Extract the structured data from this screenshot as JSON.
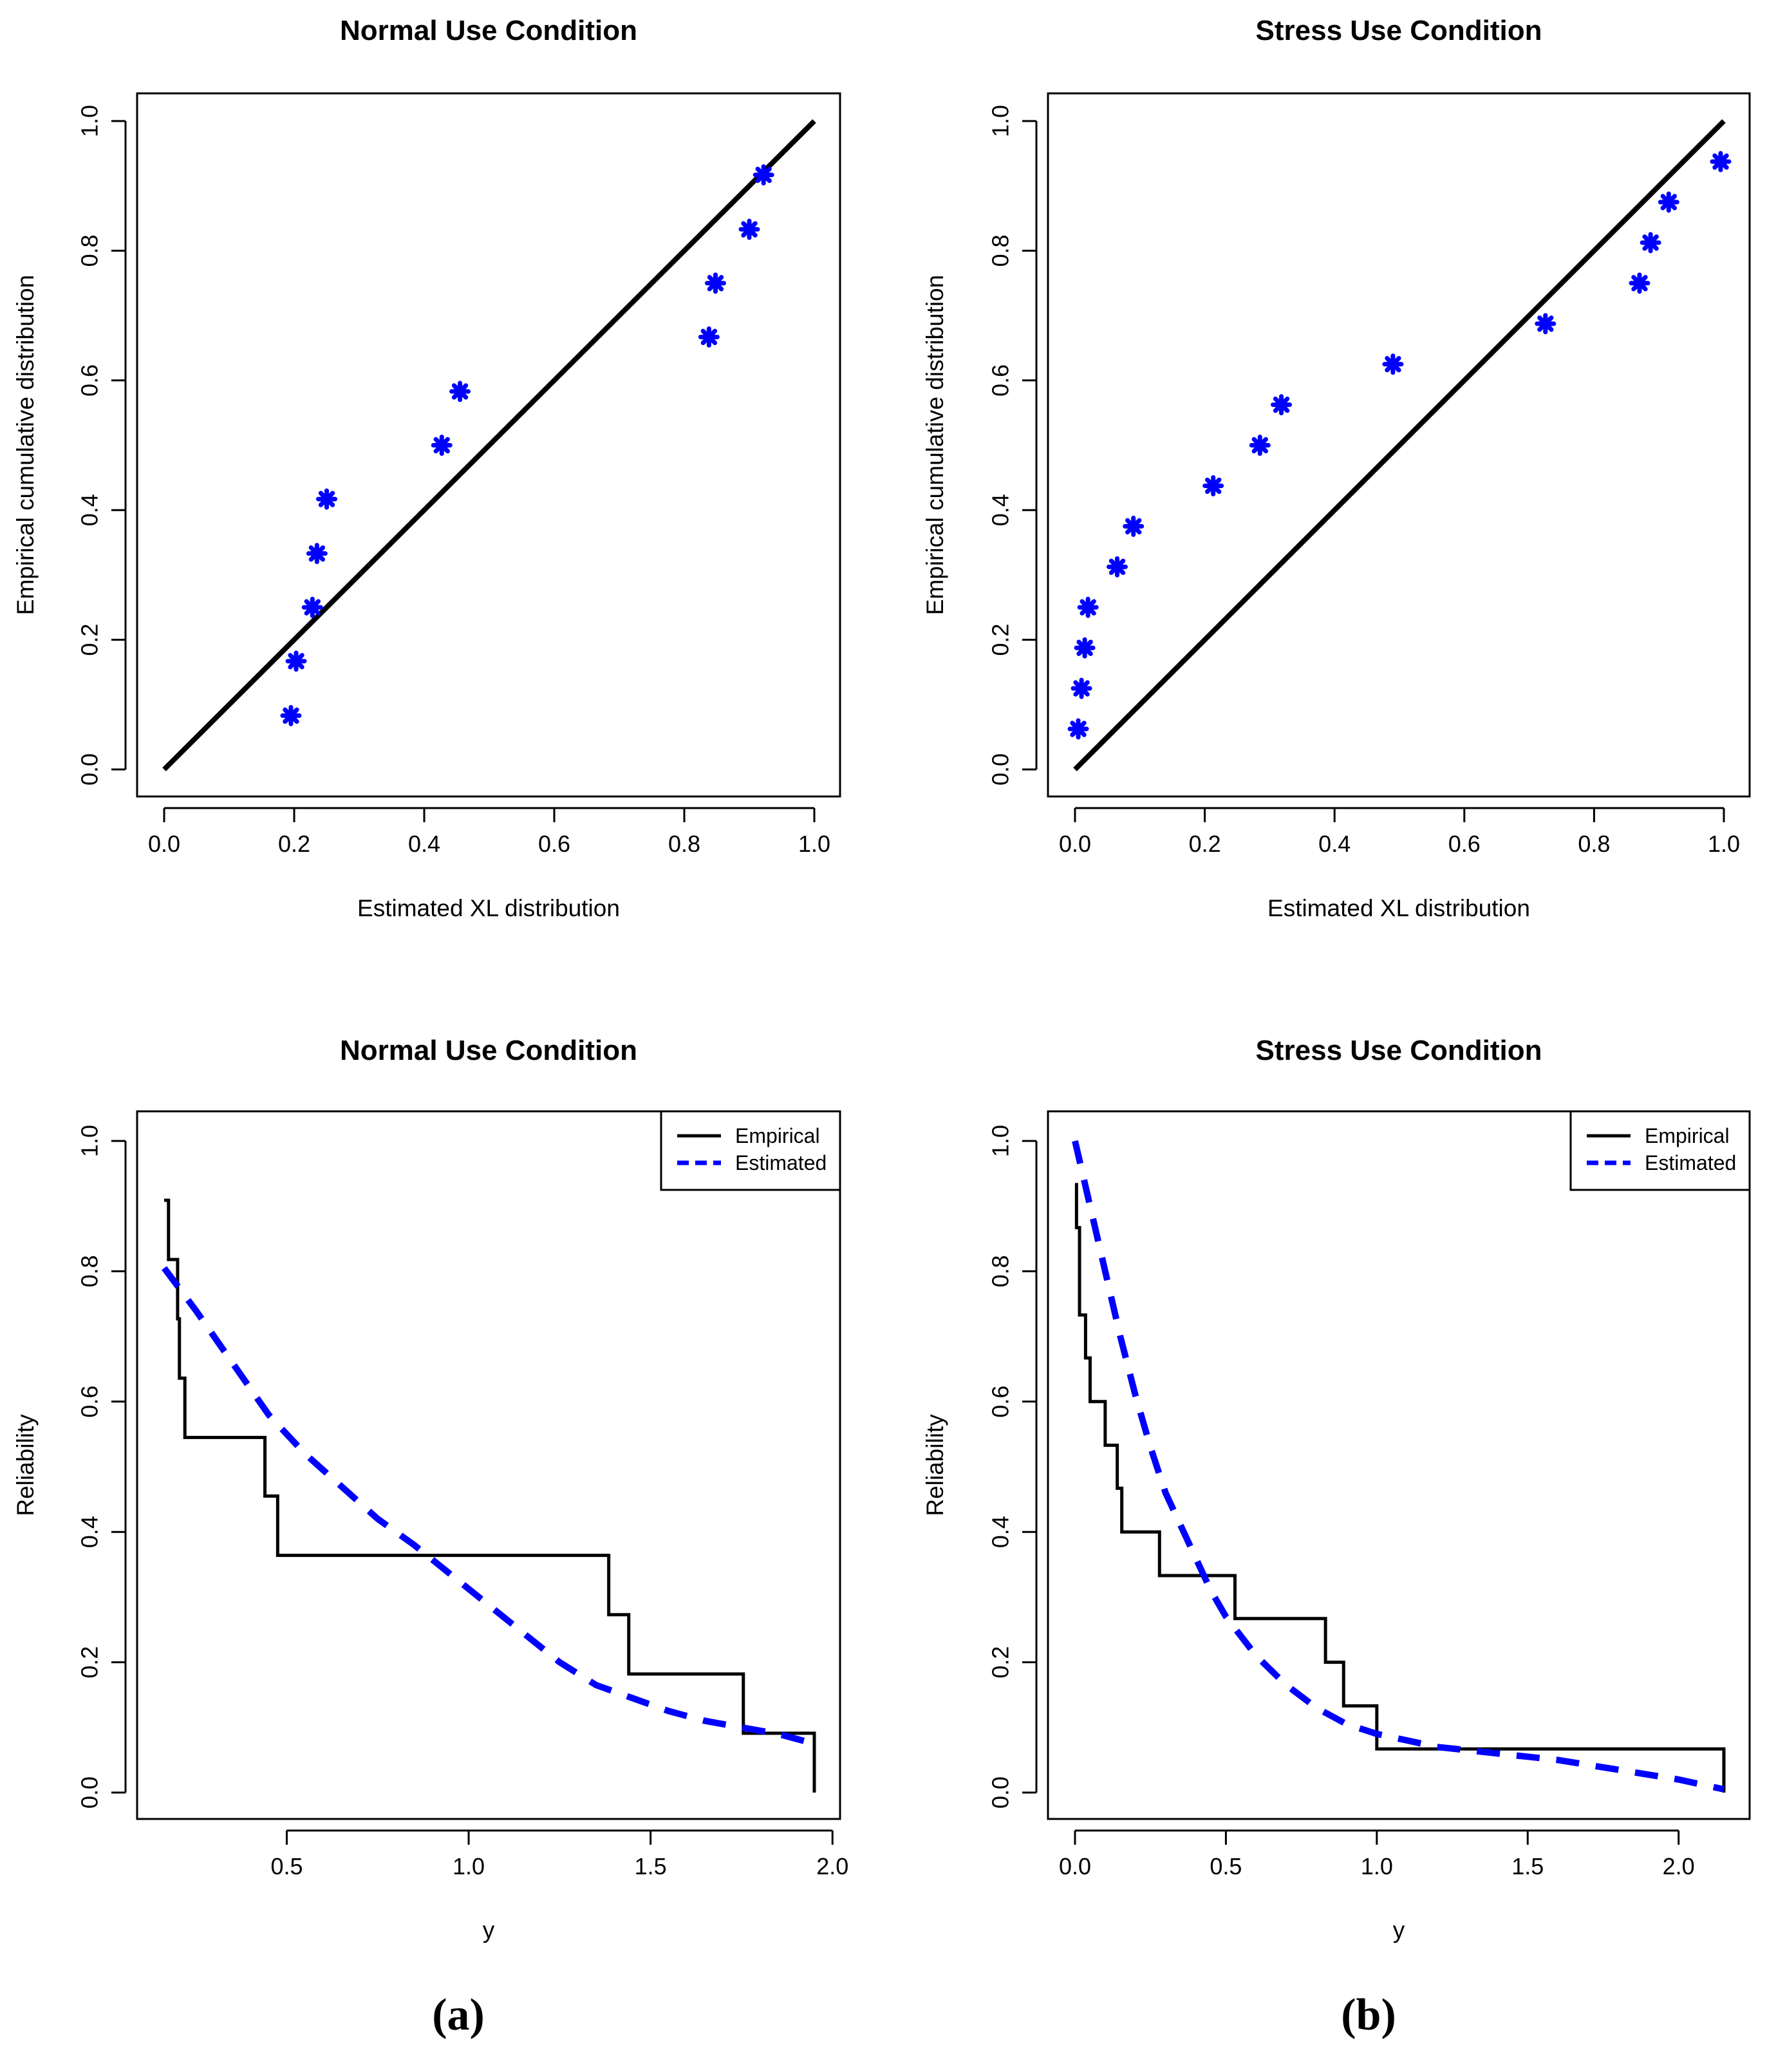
{
  "colors": {
    "empirical": "#000000",
    "estimated": "#0000ff",
    "points": "#0000ff",
    "axes": "#000000"
  },
  "panel_labels": {
    "a": "(a)",
    "b": "(b)"
  },
  "chart_data": [
    {
      "id": "pp-normal",
      "type": "scatter",
      "title": "Normal Use Condition",
      "xlabel": "Estimated XL distribution",
      "ylabel": "Empirical cumulative distribution",
      "xlim": [
        0,
        1
      ],
      "ylim": [
        0,
        1
      ],
      "xticks": [
        "0.0",
        "0.2",
        "0.4",
        "0.6",
        "0.8",
        "1.0"
      ],
      "yticks": [
        "0.0",
        "0.2",
        "0.4",
        "0.6",
        "0.8",
        "1.0"
      ],
      "reference_line": {
        "x": [
          0,
          1
        ],
        "y": [
          0,
          1
        ]
      },
      "points": {
        "x": [
          0.195,
          0.203,
          0.228,
          0.235,
          0.25,
          0.427,
          0.455,
          0.838,
          0.848,
          0.9,
          0.922
        ],
        "y": [
          0.083,
          0.167,
          0.25,
          0.333,
          0.417,
          0.5,
          0.583,
          0.667,
          0.75,
          0.833,
          0.917
        ]
      }
    },
    {
      "id": "pp-stress",
      "type": "scatter",
      "title": "Stress Use Condition",
      "xlabel": "Estimated XL distribution",
      "ylabel": "Empirical cumulative distribution",
      "xlim": [
        0,
        1
      ],
      "ylim": [
        0,
        1
      ],
      "xticks": [
        "0.0",
        "0.2",
        "0.4",
        "0.6",
        "0.8",
        "1.0"
      ],
      "yticks": [
        "0.0",
        "0.2",
        "0.4",
        "0.6",
        "0.8",
        "1.0"
      ],
      "reference_line": {
        "x": [
          0,
          1
        ],
        "y": [
          0,
          1
        ]
      },
      "points": {
        "x": [
          0.005,
          0.01,
          0.015,
          0.02,
          0.065,
          0.09,
          0.213,
          0.285,
          0.318,
          0.49,
          0.725,
          0.87,
          0.887,
          0.915,
          0.995
        ],
        "y": [
          0.0625,
          0.125,
          0.1875,
          0.25,
          0.3125,
          0.375,
          0.4375,
          0.5,
          0.5625,
          0.625,
          0.6875,
          0.75,
          0.8125,
          0.875,
          0.9375
        ]
      }
    },
    {
      "id": "rel-normal",
      "type": "line",
      "title": "Normal Use Condition",
      "xlabel": "y",
      "ylabel": "Reliability",
      "xlim": [
        0.163,
        1.95
      ],
      "ylim": [
        0,
        1
      ],
      "xticks": [
        "0.5",
        "1.0",
        "1.5",
        "2.0"
      ],
      "yticks": [
        "0.0",
        "0.2",
        "0.4",
        "0.6",
        "0.8",
        "1.0"
      ],
      "legend": [
        "Empirical",
        "Estimated"
      ],
      "legend_position": "top-right",
      "series": [
        {
          "name": "Empirical",
          "style": "step",
          "x": [
            0.163,
            0.175,
            0.2,
            0.205,
            0.22,
            0.44,
            0.475,
            1.385,
            1.44,
            1.755,
            1.95,
            1.95
          ],
          "y": [
            0.909,
            0.818,
            0.727,
            0.636,
            0.545,
            0.455,
            0.364,
            0.273,
            0.182,
            0.091,
            0.091,
            0.0
          ]
        },
        {
          "name": "Estimated",
          "style": "dashed",
          "x": [
            0.163,
            0.25,
            0.35,
            0.45,
            0.55,
            0.65,
            0.75,
            0.85,
            0.95,
            1.05,
            1.15,
            1.25,
            1.35,
            1.45,
            1.55,
            1.65,
            1.75,
            1.85,
            1.95
          ],
          "y": [
            0.805,
            0.74,
            0.66,
            0.58,
            0.52,
            0.47,
            0.42,
            0.38,
            0.335,
            0.29,
            0.245,
            0.2,
            0.165,
            0.145,
            0.125,
            0.11,
            0.1,
            0.09,
            0.075
          ]
        }
      ]
    },
    {
      "id": "rel-stress",
      "type": "line",
      "title": "Stress Use Condition",
      "xlabel": "y",
      "ylabel": "Reliability",
      "xlim": [
        0.0,
        2.15
      ],
      "ylim": [
        0,
        1
      ],
      "xticks": [
        "0.0",
        "0.5",
        "1.0",
        "1.5",
        "2.0"
      ],
      "yticks": [
        "0.0",
        "0.2",
        "0.4",
        "0.6",
        "0.8",
        "1.0"
      ],
      "legend": [
        "Empirical",
        "Estimated"
      ],
      "legend_position": "top-right",
      "series": [
        {
          "name": "Empirical",
          "style": "step",
          "x": [
            0.0,
            0.005,
            0.015,
            0.035,
            0.05,
            0.1,
            0.14,
            0.155,
            0.28,
            0.53,
            0.83,
            0.89,
            1.0,
            2.15,
            2.15
          ],
          "y": [
            0.933,
            0.867,
            0.733,
            0.667,
            0.6,
            0.533,
            0.467,
            0.4,
            0.333,
            0.267,
            0.2,
            0.133,
            0.067,
            0.067,
            0.0
          ]
        },
        {
          "name": "Estimated",
          "style": "dashed",
          "x": [
            0.0,
            0.05,
            0.1,
            0.15,
            0.2,
            0.25,
            0.3,
            0.35,
            0.4,
            0.45,
            0.5,
            0.6,
            0.7,
            0.8,
            0.9,
            1.0,
            1.1,
            1.2,
            1.4,
            1.6,
            1.8,
            2.0,
            2.15
          ],
          "y": [
            1.0,
            0.9,
            0.8,
            0.7,
            0.61,
            0.53,
            0.46,
            0.41,
            0.36,
            0.31,
            0.27,
            0.21,
            0.165,
            0.13,
            0.105,
            0.09,
            0.08,
            0.07,
            0.06,
            0.05,
            0.035,
            0.02,
            0.005
          ]
        }
      ]
    }
  ]
}
